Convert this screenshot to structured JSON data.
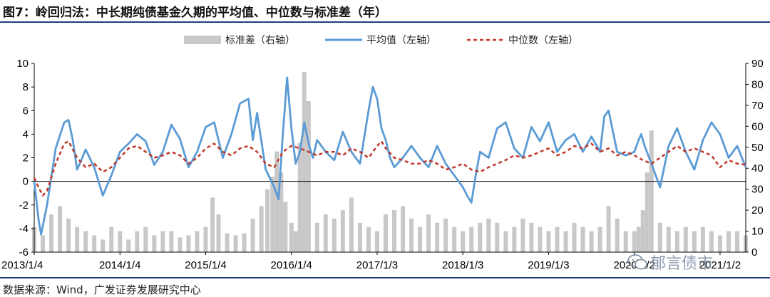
{
  "header": {
    "title": "图7：岭回归法：中长期纯债基金久期的平均值、中位数与标准差（年）"
  },
  "footer": {
    "source": "数据来源：Wind，广发证券发展研究中心"
  },
  "watermark": {
    "text": "郁言债市",
    "icon": "wechat-bubble-icon"
  },
  "chart_data": {
    "type": "line",
    "title": "图7：岭回归法：中长期纯债基金久期的平均值、中位数与标准差（年）",
    "legend_position": "top",
    "grid": false,
    "x_tick_labels": [
      "2013/1/4",
      "2014/1/4",
      "2015/1/4",
      "2016/1/4",
      "2017/1/3",
      "2018/1/3",
      "2019/1/3",
      "2020/1/2",
      "2021/1/2"
    ],
    "x_start": 2013.0,
    "x_end": 2021.3,
    "y_left": {
      "min": -6,
      "max": 10,
      "ticks": [
        -6,
        -4,
        -2,
        0,
        2,
        4,
        6,
        8,
        10
      ]
    },
    "y_right": {
      "min": 0,
      "max": 90,
      "ticks": [
        0,
        10,
        20,
        30,
        40,
        50,
        60,
        70,
        80,
        90
      ]
    },
    "series": [
      {
        "name": "标准差（右轴）",
        "axis": "right",
        "style": "bar",
        "color": "#c8c8c8",
        "x": [
          2013.0,
          2013.1,
          2013.2,
          2013.3,
          2013.4,
          2013.5,
          2013.6,
          2013.7,
          2013.8,
          2013.9,
          2014.0,
          2014.1,
          2014.2,
          2014.3,
          2014.4,
          2014.5,
          2014.6,
          2014.7,
          2014.8,
          2014.9,
          2015.0,
          2015.08,
          2015.15,
          2015.25,
          2015.35,
          2015.45,
          2015.55,
          2015.65,
          2015.72,
          2015.78,
          2015.83,
          2015.88,
          2015.93,
          2016.0,
          2016.05,
          2016.1,
          2016.15,
          2016.2,
          2016.3,
          2016.4,
          2016.5,
          2016.6,
          2016.7,
          2016.8,
          2016.9,
          2017.0,
          2017.1,
          2017.2,
          2017.3,
          2017.4,
          2017.5,
          2017.6,
          2017.7,
          2017.8,
          2017.9,
          2018.0,
          2018.1,
          2018.2,
          2018.3,
          2018.4,
          2018.5,
          2018.6,
          2018.7,
          2018.8,
          2018.9,
          2019.0,
          2019.1,
          2019.2,
          2019.3,
          2019.4,
          2019.5,
          2019.6,
          2019.7,
          2019.8,
          2019.9,
          2020.0,
          2020.05,
          2020.1,
          2020.15,
          2020.2,
          2020.3,
          2020.4,
          2020.5,
          2020.6,
          2020.7,
          2020.8,
          2020.9,
          2021.0,
          2021.1,
          2021.2,
          2021.3
        ],
        "values": [
          12,
          8,
          18,
          22,
          16,
          12,
          10,
          8,
          6,
          12,
          10,
          6,
          10,
          12,
          8,
          10,
          10,
          7,
          8,
          10,
          12,
          26,
          18,
          9,
          8,
          9,
          16,
          22,
          30,
          36,
          48,
          38,
          24,
          14,
          10,
          52,
          86,
          72,
          14,
          18,
          16,
          20,
          26,
          14,
          12,
          10,
          18,
          20,
          22,
          16,
          12,
          18,
          14,
          16,
          12,
          10,
          12,
          14,
          16,
          14,
          10,
          12,
          16,
          14,
          12,
          10,
          12,
          10,
          14,
          12,
          10,
          12,
          22,
          16,
          10,
          10,
          12,
          20,
          38,
          58,
          14,
          12,
          10,
          12,
          10,
          12,
          10,
          8,
          10,
          10,
          8
        ]
      },
      {
        "name": "平均值（左轴）",
        "axis": "left",
        "style": "line",
        "color": "#5b9bd5",
        "x": [
          2013.0,
          2013.05,
          2013.08,
          2013.15,
          2013.25,
          2013.35,
          2013.4,
          2013.45,
          2013.5,
          2013.55,
          2013.6,
          2013.7,
          2013.8,
          2013.9,
          2014.0,
          2014.1,
          2014.2,
          2014.3,
          2014.4,
          2014.5,
          2014.6,
          2014.7,
          2014.8,
          2014.9,
          2015.0,
          2015.1,
          2015.2,
          2015.3,
          2015.4,
          2015.5,
          2015.55,
          2015.6,
          2015.7,
          2015.8,
          2015.85,
          2015.9,
          2015.95,
          2016.0,
          2016.05,
          2016.1,
          2016.15,
          2016.2,
          2016.25,
          2016.3,
          2016.4,
          2016.5,
          2016.6,
          2016.7,
          2016.8,
          2016.9,
          2016.95,
          2017.0,
          2017.05,
          2017.1,
          2017.15,
          2017.2,
          2017.3,
          2017.4,
          2017.5,
          2017.6,
          2017.7,
          2017.8,
          2017.9,
          2018.0,
          2018.05,
          2018.1,
          2018.15,
          2018.2,
          2018.3,
          2018.4,
          2018.5,
          2018.6,
          2018.7,
          2018.8,
          2018.9,
          2019.0,
          2019.1,
          2019.2,
          2019.3,
          2019.4,
          2019.5,
          2019.6,
          2019.65,
          2019.7,
          2019.8,
          2019.9,
          2020.0,
          2020.05,
          2020.08,
          2020.12,
          2020.2,
          2020.3,
          2020.4,
          2020.5,
          2020.6,
          2020.7,
          2020.8,
          2020.9,
          2021.0,
          2021.1,
          2021.2,
          2021.3
        ],
        "values": [
          0,
          -3.2,
          -4.5,
          -2.0,
          2.8,
          5.0,
          5.2,
          3.5,
          1.0,
          1.8,
          2.7,
          1.2,
          -1.2,
          0.5,
          2.5,
          3.2,
          4.0,
          3.4,
          1.4,
          2.5,
          4.8,
          3.6,
          1.2,
          2.5,
          4.6,
          5.0,
          2.0,
          4.0,
          6.6,
          7.0,
          3.5,
          5.8,
          1.0,
          -0.5,
          -1.5,
          4.0,
          8.8,
          4.5,
          1.5,
          2.5,
          5.0,
          3.2,
          2.0,
          3.5,
          2.5,
          1.8,
          4.2,
          2.5,
          1.5,
          6.0,
          8.0,
          7.0,
          4.5,
          3.5,
          2.0,
          1.2,
          2.0,
          3.0,
          2.0,
          1.2,
          3.0,
          1.5,
          0.5,
          -0.5,
          -1.2,
          -1.8,
          0.5,
          2.5,
          2.0,
          4.5,
          5.0,
          2.8,
          2.0,
          4.6,
          3.4,
          5.0,
          2.5,
          3.5,
          4.0,
          2.5,
          3.8,
          2.5,
          5.5,
          6.0,
          2.5,
          2.2,
          2.5,
          3.5,
          4.0,
          3.0,
          1.5,
          -0.5,
          3.0,
          4.5,
          2.5,
          1.0,
          3.5,
          5.0,
          4.0,
          2.0,
          3.0,
          1.2
        ]
      },
      {
        "name": "中位数（左轴）",
        "axis": "left",
        "style": "dashed",
        "color": "#c0392b",
        "x": [
          2013.0,
          2013.05,
          2013.1,
          2013.15,
          2013.25,
          2013.35,
          2013.4,
          2013.5,
          2013.6,
          2013.7,
          2013.8,
          2013.9,
          2014.0,
          2014.1,
          2014.2,
          2014.3,
          2014.4,
          2014.5,
          2014.6,
          2014.7,
          2014.8,
          2014.9,
          2015.0,
          2015.1,
          2015.2,
          2015.3,
          2015.4,
          2015.5,
          2015.6,
          2015.7,
          2015.8,
          2015.9,
          2016.0,
          2016.1,
          2016.2,
          2016.3,
          2016.4,
          2016.5,
          2016.6,
          2016.7,
          2016.8,
          2016.9,
          2017.0,
          2017.05,
          2017.1,
          2017.2,
          2017.3,
          2017.4,
          2017.5,
          2017.6,
          2017.7,
          2017.8,
          2017.9,
          2018.0,
          2018.1,
          2018.2,
          2018.3,
          2018.4,
          2018.5,
          2018.6,
          2018.7,
          2018.8,
          2018.9,
          2019.0,
          2019.1,
          2019.2,
          2019.3,
          2019.4,
          2019.5,
          2019.6,
          2019.7,
          2019.8,
          2019.9,
          2020.0,
          2020.1,
          2020.2,
          2020.3,
          2020.4,
          2020.5,
          2020.6,
          2020.7,
          2020.8,
          2020.9,
          2021.0,
          2021.1,
          2021.2,
          2021.3
        ],
        "values": [
          0.3,
          -0.5,
          -1.2,
          -0.8,
          1.5,
          3.2,
          3.4,
          2.0,
          1.2,
          1.5,
          0.8,
          1.2,
          2.0,
          2.8,
          3.0,
          2.5,
          2.0,
          2.2,
          2.5,
          2.2,
          1.5,
          2.0,
          2.8,
          3.2,
          2.5,
          2.2,
          2.8,
          3.0,
          2.5,
          1.5,
          1.2,
          2.5,
          3.0,
          2.8,
          2.5,
          2.2,
          2.5,
          2.5,
          2.2,
          2.8,
          2.5,
          2.0,
          3.0,
          3.4,
          2.8,
          2.0,
          1.8,
          1.5,
          1.5,
          1.8,
          1.5,
          1.0,
          1.2,
          1.5,
          1.0,
          0.8,
          1.2,
          1.5,
          1.8,
          2.2,
          2.0,
          2.2,
          2.5,
          2.8,
          2.2,
          2.5,
          3.0,
          2.8,
          3.2,
          2.5,
          2.8,
          2.2,
          2.5,
          2.2,
          1.8,
          1.5,
          2.0,
          2.5,
          3.0,
          2.5,
          2.8,
          2.5,
          2.2,
          1.2,
          1.8,
          1.5,
          1.4
        ]
      }
    ]
  }
}
